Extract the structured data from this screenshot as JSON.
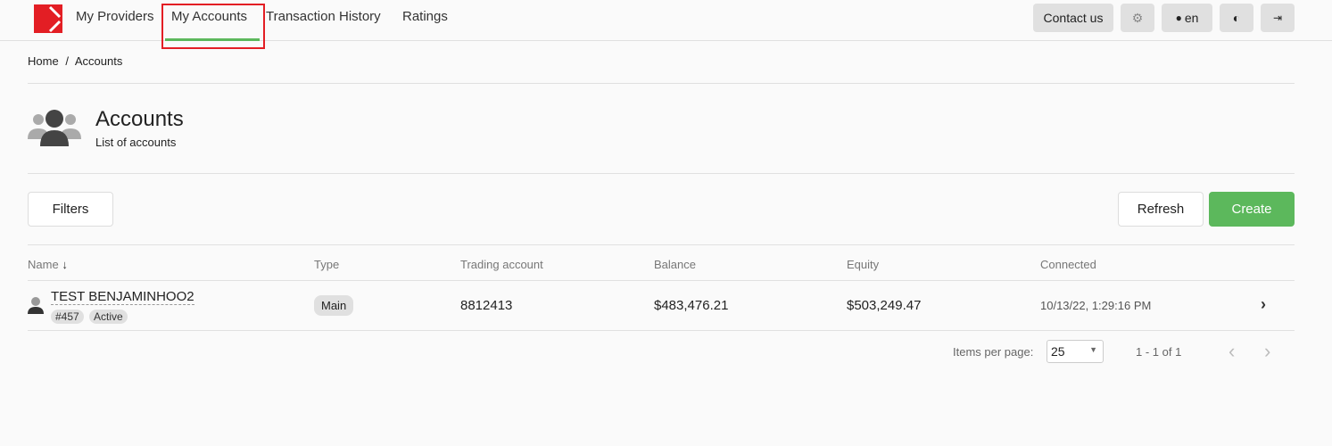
{
  "nav": {
    "items": [
      "My Providers",
      "My Accounts",
      "Transaction History",
      "Ratings"
    ],
    "active": "My Accounts"
  },
  "header": {
    "contact": "Contact us",
    "lang": "en"
  },
  "breadcrumb": {
    "home": "Home",
    "sep": "/",
    "current": "Accounts"
  },
  "page": {
    "title": "Accounts",
    "subtitle": "List of accounts"
  },
  "toolbar": {
    "filters": "Filters",
    "refresh": "Refresh",
    "create": "Create"
  },
  "table": {
    "headers": [
      "Name",
      "Type",
      "Trading account",
      "Balance",
      "Equity",
      "Connected"
    ],
    "rows": [
      {
        "name": "TEST BENJAMINHOO2",
        "id": "#457",
        "status": "Active",
        "type": "Main",
        "trading_account": "8812413",
        "balance": "$483,476.21",
        "equity": "$503,249.47",
        "connected": "10/13/22, 1:29:16 PM"
      }
    ]
  },
  "pagination": {
    "label": "Items per page:",
    "per_page": "25",
    "range": "1 - 1 of 1"
  },
  "colors": {
    "brand": "#e31e24",
    "accent": "#5cb85c",
    "highlight": "#e31e24"
  }
}
